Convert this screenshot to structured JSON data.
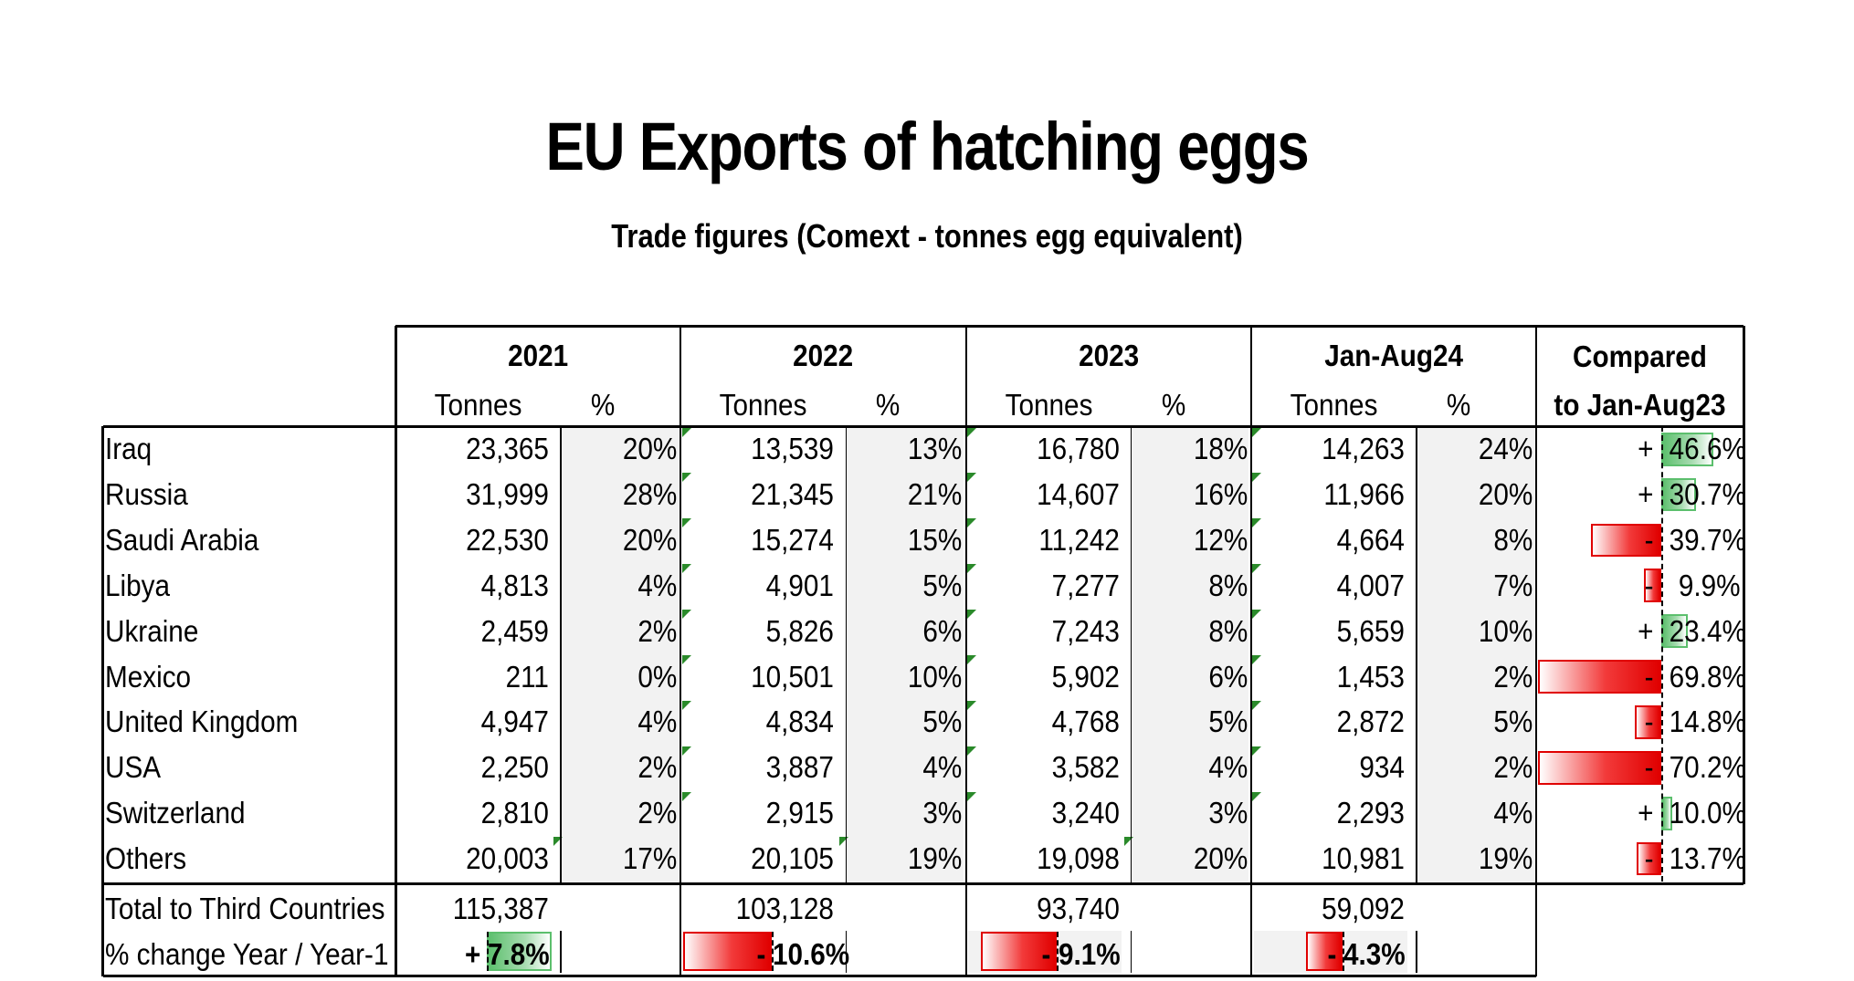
{
  "title": "EU Exports of hatching eggs",
  "subtitle": "Trade figures (Comext - tonnes egg equivalent)",
  "table": {
    "periods": [
      {
        "label": "2021",
        "tonnes_label": "Tonnes",
        "pct_label": "%"
      },
      {
        "label": "2022",
        "tonnes_label": "Tonnes",
        "pct_label": "%"
      },
      {
        "label": "2023",
        "tonnes_label": "Tonnes",
        "pct_label": "%"
      },
      {
        "label": "Jan-Aug24",
        "tonnes_label": "Tonnes",
        "pct_label": "%"
      }
    ],
    "compared_header": [
      "Compared",
      "to Jan-Aug23"
    ],
    "rows": [
      {
        "country": "Iraq",
        "values": [
          "23,365",
          "20%",
          "13,539",
          "13%",
          "16,780",
          "18%",
          "14,263",
          "24%"
        ],
        "sign": "+",
        "change_text": "46.6%",
        "change": 46.6
      },
      {
        "country": "Russia",
        "values": [
          "31,999",
          "28%",
          "21,345",
          "21%",
          "14,607",
          "16%",
          "11,966",
          "20%"
        ],
        "sign": "+",
        "change_text": "30.7%",
        "change": 30.7
      },
      {
        "country": "Saudi Arabia",
        "values": [
          "22,530",
          "20%",
          "15,274",
          "15%",
          "11,242",
          "12%",
          "4,664",
          "8%"
        ],
        "sign": "-",
        "change_text": "39.7%",
        "change": -39.7
      },
      {
        "country": "Libya",
        "values": [
          "4,813",
          "4%",
          "4,901",
          "5%",
          "7,277",
          "8%",
          "4,007",
          "7%"
        ],
        "sign": "-",
        "change_text": " 9.9%",
        "change": -9.9
      },
      {
        "country": "Ukraine",
        "values": [
          "2,459",
          "2%",
          "5,826",
          "6%",
          "7,243",
          "8%",
          "5,659",
          "10%"
        ],
        "sign": "+",
        "change_text": "23.4%",
        "change": 23.4
      },
      {
        "country": "Mexico",
        "values": [
          "211",
          "0%",
          "10,501",
          "10%",
          "5,902",
          "6%",
          "1,453",
          "2%"
        ],
        "sign": "-",
        "change_text": "69.8%",
        "change": -69.8
      },
      {
        "country": "United Kingdom",
        "values": [
          "4,947",
          "4%",
          "4,834",
          "5%",
          "4,768",
          "5%",
          "2,872",
          "5%"
        ],
        "sign": "-",
        "change_text": "14.8%",
        "change": -14.8
      },
      {
        "country": "USA",
        "values": [
          "2,250",
          "2%",
          "3,887",
          "4%",
          "3,582",
          "4%",
          "934",
          "2%"
        ],
        "sign": "-",
        "change_text": "70.2%",
        "change": -70.2
      },
      {
        "country": "Switzerland",
        "values": [
          "2,810",
          "2%",
          "2,915",
          "3%",
          "3,240",
          "3%",
          "2,293",
          "4%"
        ],
        "sign": "+",
        "change_text": "10.0%",
        "change": 10.0
      },
      {
        "country": "Others",
        "values": [
          "20,003",
          "17%",
          "20,105",
          "19%",
          "19,098",
          "20%",
          "10,981",
          "19%"
        ],
        "sign": "-",
        "change_text": "13.7%",
        "change": -13.7
      }
    ],
    "total": {
      "label": "Total to Third Countries",
      "values": [
        "115,387",
        "103,128",
        "93,740",
        "59,092"
      ]
    },
    "yoy": {
      "label": "% change Year / Year-1",
      "items": [
        {
          "sign": "+",
          "text": "7.8%",
          "value": 7.8
        },
        {
          "sign": "-",
          "text": "10.6%",
          "value": -10.6
        },
        {
          "sign": "-",
          "text": "9.1%",
          "value": -9.1
        },
        {
          "sign": "-",
          "text": "4.3%",
          "value": -4.3
        }
      ]
    },
    "colors": {
      "negative": "#e00000",
      "positive": "#5cbf6d",
      "shade": "#f2f2f2",
      "marker": "#2a8a2a"
    }
  }
}
